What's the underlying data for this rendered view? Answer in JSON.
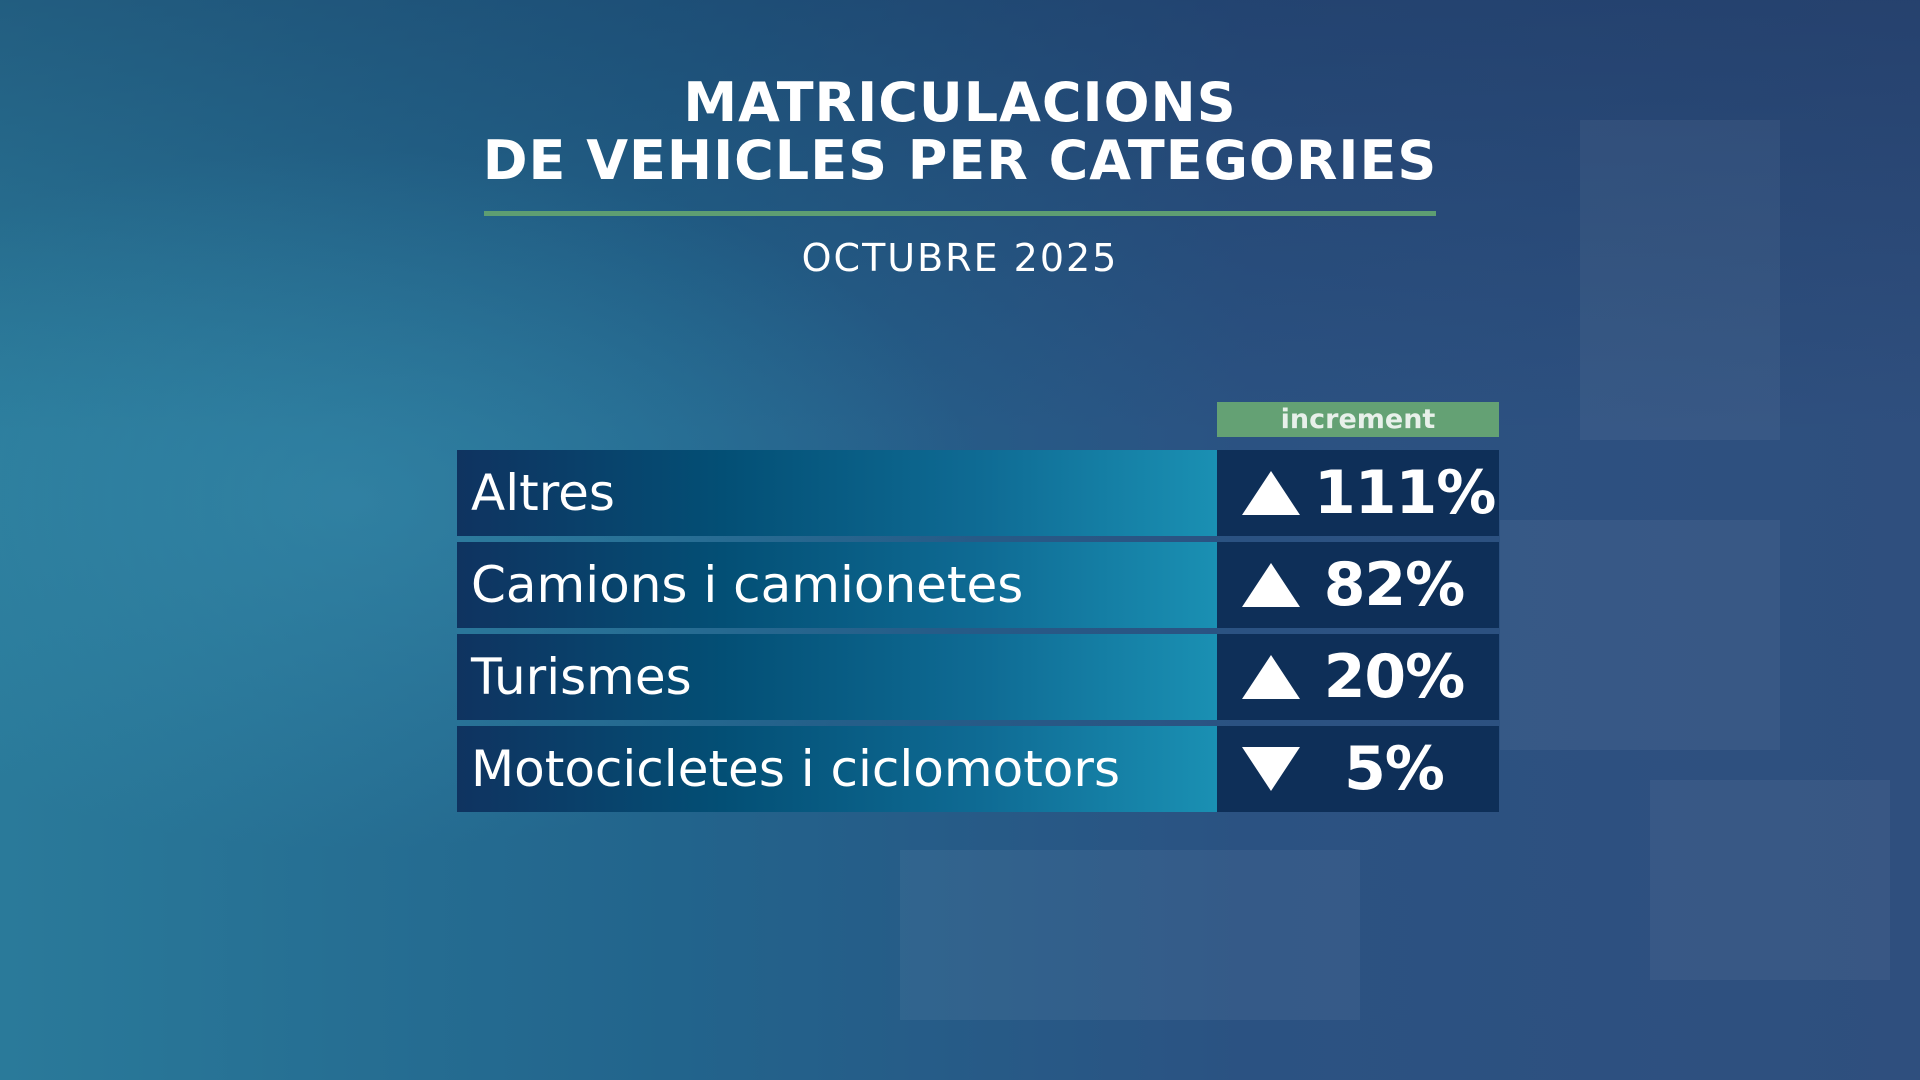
{
  "title_line1": "MATRICULACIONS",
  "title_line2": "DE VEHICLES PER CATEGORIES",
  "subtitle": "OCTUBRE 2025",
  "column_header": "increment",
  "colors": {
    "accent_green": "#64a174",
    "value_cell": "#0e2f58"
  },
  "rows": [
    {
      "label": "Altres",
      "value": "111%",
      "direction": "up"
    },
    {
      "label": "Camions i camionetes",
      "value": "82%",
      "direction": "up"
    },
    {
      "label": "Turismes",
      "value": "20%",
      "direction": "up"
    },
    {
      "label": "Motocicletes i ciclomotors",
      "value": "5%",
      "direction": "down"
    }
  ]
}
